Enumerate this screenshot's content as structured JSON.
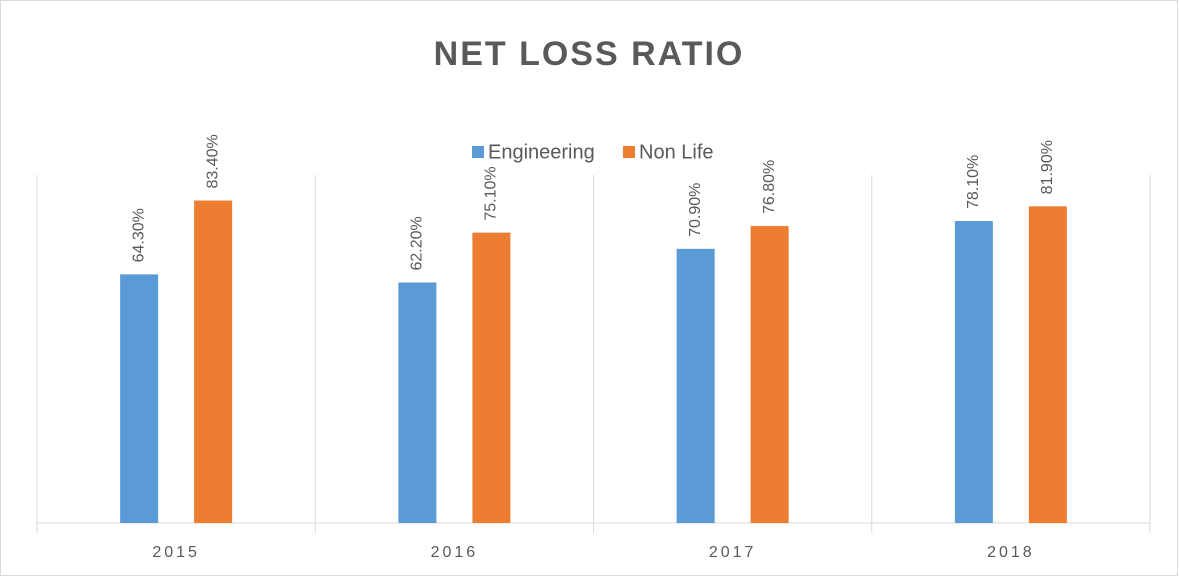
{
  "chart_data": {
    "type": "bar",
    "title": "NET LOSS RATIO",
    "categories": [
      "2015",
      "2016",
      "2017",
      "2018"
    ],
    "series": [
      {
        "name": "Engineering",
        "color": "#5b9bd5",
        "values": [
          64.3,
          62.2,
          70.9,
          78.1
        ],
        "value_labels": [
          "64.30%",
          "62.20%",
          "70.90%",
          "78.10%"
        ]
      },
      {
        "name": "Non Life",
        "color": "#ed7d31",
        "values": [
          83.4,
          75.1,
          76.8,
          81.9
        ],
        "value_labels": [
          "83.40%",
          "75.10%",
          "76.80%",
          "81.90%"
        ]
      }
    ],
    "ylim": [
      0,
      90
    ],
    "legend": "top"
  }
}
